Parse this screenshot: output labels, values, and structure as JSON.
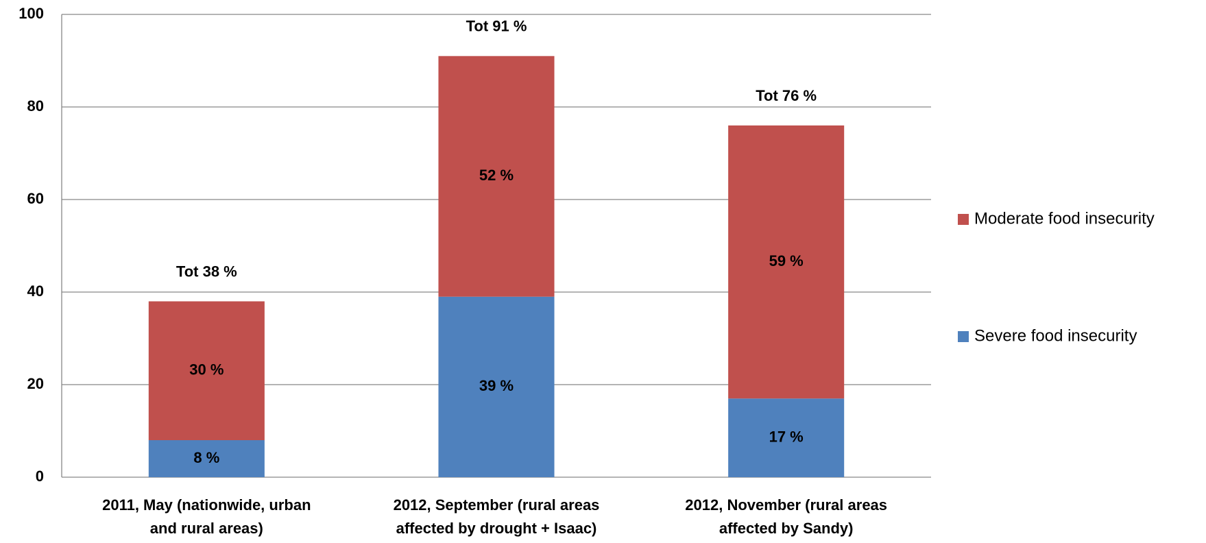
{
  "chart_data": {
    "type": "stacked-bar",
    "categories": [
      [
        "2011, May (nationwide, urban",
        "and rural areas)"
      ],
      [
        "2012, September (rural areas",
        "affected by drought + Isaac)"
      ],
      [
        "2012, November (rural areas",
        "affected by Sandy)"
      ]
    ],
    "series": [
      {
        "name": "Severe food insecurity",
        "color": "#4f81bd",
        "values": [
          8,
          39,
          17
        ],
        "value_labels": [
          "8 %",
          "39 %",
          "17 %"
        ]
      },
      {
        "name": "Moderate food insecurity",
        "color": "#c0504d",
        "values": [
          30,
          52,
          59
        ],
        "value_labels": [
          "30 %",
          "52 %",
          "59 %"
        ]
      }
    ],
    "totals": [
      38,
      91,
      76
    ],
    "total_labels": [
      "Tot 38 %",
      "Tot 91 %",
      "Tot 76 %"
    ],
    "ylim": [
      0,
      100
    ],
    "yticks": [
      0,
      20,
      40,
      60,
      80,
      100
    ],
    "grid": true,
    "legend": "right"
  }
}
